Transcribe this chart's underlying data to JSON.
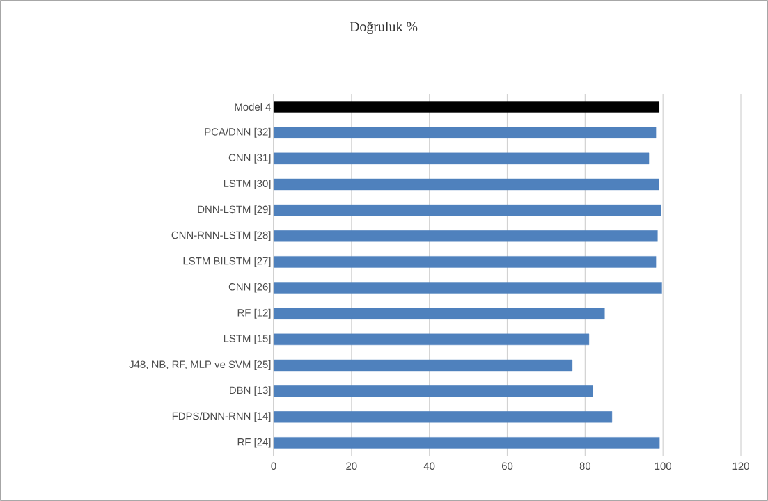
{
  "chart_data": {
    "type": "bar",
    "orientation": "horizontal",
    "title": "Doğruluk %",
    "categories": [
      "Model 4",
      "PCA/DNN [32]",
      "CNN [31]",
      "LSTM [30]",
      "DNN-LSTM [29]",
      "CNN-RNN-LSTM [28]",
      "LSTM BILSTM [27]",
      "CNN [26]",
      "RF [12]",
      "LSTM [15]",
      "J48, NB, RF, MLP ve SVM [25]",
      "DBN [13]",
      "FDPS/DNN-RNN [14]",
      "RF [24]"
    ],
    "values": [
      99.0,
      98.2,
      96.4,
      98.9,
      99.5,
      98.6,
      98.2,
      99.7,
      85.0,
      81.0,
      76.7,
      82.0,
      86.9,
      99.1
    ],
    "colors": [
      "#000000",
      "#4f81bd",
      "#4f81bd",
      "#4f81bd",
      "#4f81bd",
      "#4f81bd",
      "#4f81bd",
      "#4f81bd",
      "#4f81bd",
      "#4f81bd",
      "#4f81bd",
      "#4f81bd",
      "#4f81bd",
      "#4f81bd"
    ],
    "xlim": [
      0,
      120
    ],
    "xticks": [
      0,
      20,
      40,
      60,
      80,
      100,
      120
    ],
    "grid": "x"
  }
}
